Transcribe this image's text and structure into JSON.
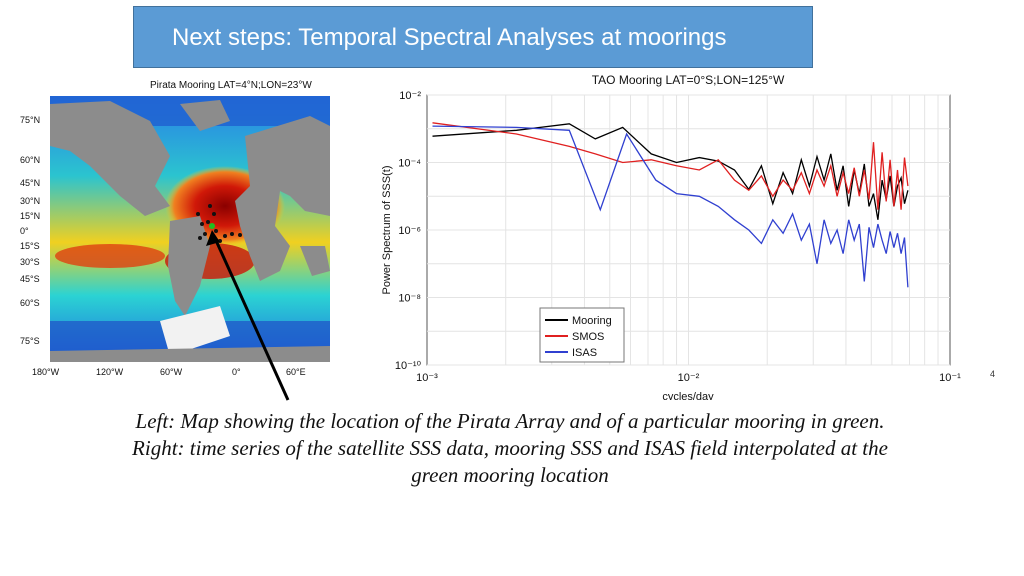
{
  "slide": {
    "title": "Next steps: Temporal Spectral Analyses at moorings"
  },
  "map": {
    "title": "Pirata Mooring LAT=4°N;LON=23°W",
    "lat_labels": [
      "75°N",
      "60°N",
      "45°N",
      "30°N",
      "15°N",
      "0°",
      "15°S",
      "30°S",
      "45°S",
      "60°S",
      "75°S"
    ],
    "lon_labels": [
      "180°W",
      "120°W",
      "60°W",
      "0°",
      "60°E"
    ],
    "colors": {
      "ocean_low": "#1f6fe0",
      "ocean_mid": "#2bd3d3",
      "ocean_high": "#c0120a",
      "land": "#8c8c8c"
    }
  },
  "chart_data": {
    "type": "line",
    "title": "TAO Mooring LAT=0°S;LON=125°W",
    "xlabel": "cycles/day",
    "ylabel": "Power Spectrum of SSS(t)",
    "x_scale": "log",
    "y_scale": "log",
    "xlim": [
      0.001,
      0.1
    ],
    "ylim": [
      1e-10,
      0.01
    ],
    "x_tick_labels": [
      "10⁻³",
      "10⁻²",
      "10⁻¹"
    ],
    "y_tick_labels": [
      "10⁻²",
      "10⁻⁴",
      "10⁻⁶",
      "10⁻⁸",
      "10⁻¹⁰"
    ],
    "grid": true,
    "legend_position": "bottom-left",
    "series": [
      {
        "name": "Mooring",
        "color": "#000000",
        "x": [
          0.00105,
          0.0022,
          0.0035,
          0.0044,
          0.0056,
          0.0072,
          0.009,
          0.011,
          0.013,
          0.015,
          0.017,
          0.019,
          0.021,
          0.023,
          0.025,
          0.027,
          0.029,
          0.031,
          0.033,
          0.035,
          0.037,
          0.039,
          0.041,
          0.043,
          0.045,
          0.047,
          0.049,
          0.051,
          0.053,
          0.055,
          0.057,
          0.059,
          0.061,
          0.063,
          0.065,
          0.067,
          0.069
        ],
        "y": [
          0.0006,
          0.0009,
          0.0014,
          0.0005,
          0.0011,
          0.00018,
          0.0001,
          0.00014,
          0.00011,
          6e-05,
          1.6e-05,
          8e-05,
          6e-06,
          5e-05,
          1.2e-05,
          0.00012,
          2e-05,
          0.00015,
          3e-05,
          0.00018,
          1.5e-05,
          8e-05,
          5e-06,
          6e-05,
          1.2e-05,
          9e-05,
          5e-06,
          1.2e-05,
          2e-06,
          3e-05,
          8e-06,
          4e-05,
          5e-06,
          2e-05,
          3.5e-05,
          6e-06,
          1.5e-05
        ]
      },
      {
        "name": "SMOS",
        "color": "#e02020",
        "x": [
          0.00105,
          0.0022,
          0.0035,
          0.0044,
          0.0056,
          0.0072,
          0.009,
          0.011,
          0.013,
          0.015,
          0.017,
          0.019,
          0.021,
          0.023,
          0.025,
          0.027,
          0.029,
          0.031,
          0.033,
          0.035,
          0.037,
          0.039,
          0.041,
          0.043,
          0.045,
          0.047,
          0.049,
          0.051,
          0.053,
          0.055,
          0.057,
          0.059,
          0.061,
          0.063,
          0.065,
          0.067,
          0.069
        ],
        "y": [
          0.0015,
          0.0007,
          0.0003,
          0.00018,
          0.0001,
          0.00012,
          8e-05,
          6e-05,
          0.00012,
          3e-05,
          1.5e-05,
          4e-05,
          1e-05,
          3e-05,
          1.5e-05,
          5e-05,
          1.2e-05,
          6e-05,
          2e-05,
          8e-05,
          1e-05,
          5e-05,
          1.2e-05,
          7e-05,
          1e-05,
          6e-05,
          8e-06,
          0.0004,
          4e-06,
          0.0002,
          7e-06,
          0.00012,
          5e-06,
          6e-05,
          4e-06,
          0.00014,
          2e-05
        ]
      },
      {
        "name": "ISAS",
        "color": "#3040d0",
        "x": [
          0.00105,
          0.0022,
          0.0035,
          0.0046,
          0.0058,
          0.0075,
          0.009,
          0.011,
          0.013,
          0.015,
          0.017,
          0.019,
          0.021,
          0.023,
          0.025,
          0.027,
          0.029,
          0.031,
          0.033,
          0.035,
          0.037,
          0.039,
          0.041,
          0.043,
          0.045,
          0.047,
          0.049,
          0.051,
          0.053,
          0.055,
          0.057,
          0.059,
          0.061,
          0.063,
          0.065,
          0.067,
          0.069
        ],
        "y": [
          0.0012,
          0.0011,
          0.0009,
          4e-06,
          0.0007,
          3e-05,
          1.2e-05,
          1e-05,
          5e-06,
          2e-06,
          1e-06,
          4e-07,
          2e-06,
          8e-07,
          3e-06,
          5e-07,
          1.5e-06,
          1e-07,
          2e-06,
          4e-07,
          1e-06,
          2e-07,
          2e-06,
          5e-07,
          1.5e-06,
          3e-08,
          1.2e-06,
          3e-07,
          1.5e-06,
          5e-07,
          2e-07,
          9e-07,
          3e-07,
          8e-07,
          2e-07,
          6e-07,
          2e-08
        ]
      }
    ]
  },
  "caption": {
    "line1": "Left: Map showing the location of the Pirata Array and of a particular mooring in green.",
    "line2": "Right: time series of the satellite SSS data, mooring SSS and ISAS field interpolated at the",
    "line3": "green mooring location"
  },
  "stray_text": "4"
}
